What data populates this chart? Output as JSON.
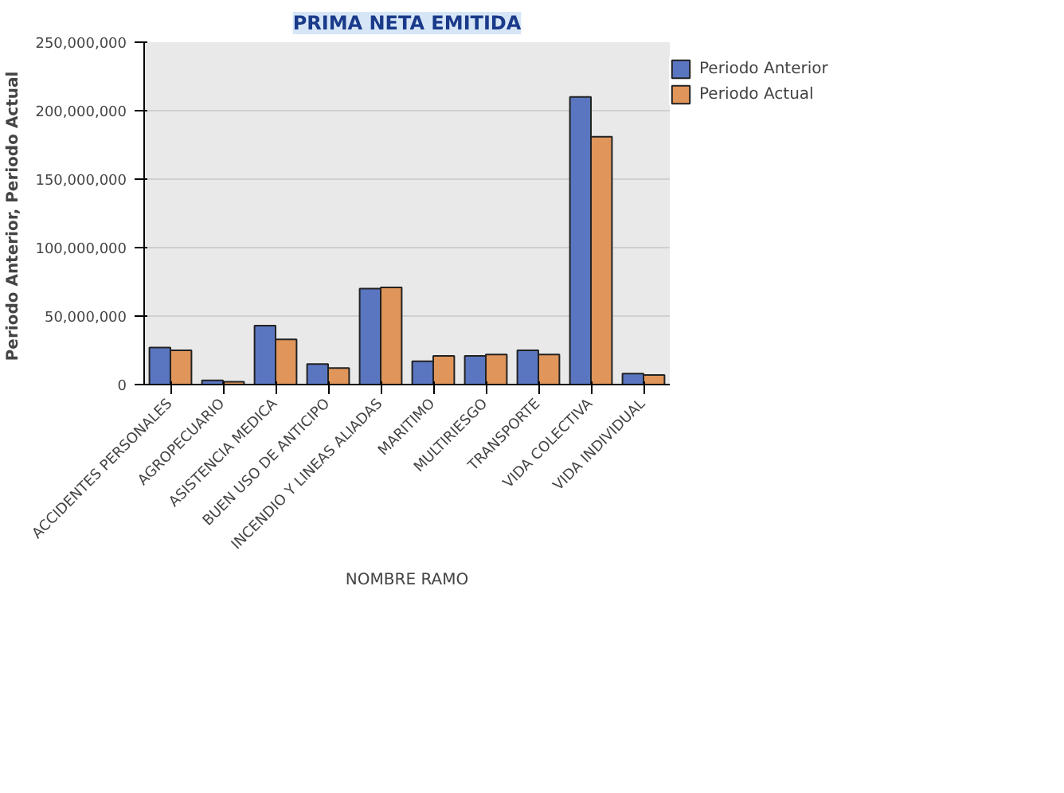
{
  "chart_data": {
    "type": "bar",
    "title": "PRIMA NETA EMITIDA",
    "xlabel": "NOMBRE RAMO",
    "ylabel": "Periodo Anterior,  Periodo Actual",
    "categories": [
      "ACCIDENTES PERSONALES",
      "AGROPECUARIO",
      "ASISTENCIA MEDICA",
      "BUEN USO DE ANTICIPO",
      "INCENDIO Y LINEAS ALIADAS",
      "MARITIMO",
      "MULTIRIESGO",
      "TRANSPORTE",
      "VIDA COLECTIVA",
      "VIDA INDIVIDUAL"
    ],
    "series": [
      {
        "name": "Periodo Anterior",
        "color": "#5b76c0",
        "values": [
          27000000,
          3000000,
          43000000,
          15000000,
          70000000,
          17000000,
          21000000,
          25000000,
          210000000,
          8000000
        ]
      },
      {
        "name": "Periodo Actual",
        "color": "#e0955a",
        "values": [
          25000000,
          2000000,
          33000000,
          12000000,
          71000000,
          21000000,
          22000000,
          22000000,
          181000000,
          7000000
        ]
      }
    ],
    "ylim": [
      0,
      250000000
    ],
    "yticks": [
      {
        "value": 0,
        "label": "0"
      },
      {
        "value": 50000000,
        "label": "50,000,000"
      },
      {
        "value": 100000000,
        "label": "100,000,000"
      },
      {
        "value": 150000000,
        "label": "150,000,000"
      },
      {
        "value": 200000000,
        "label": "200,000,000"
      },
      {
        "value": 250000000,
        "label": "250,000,000"
      }
    ],
    "grid": "y",
    "legend": "top right"
  }
}
